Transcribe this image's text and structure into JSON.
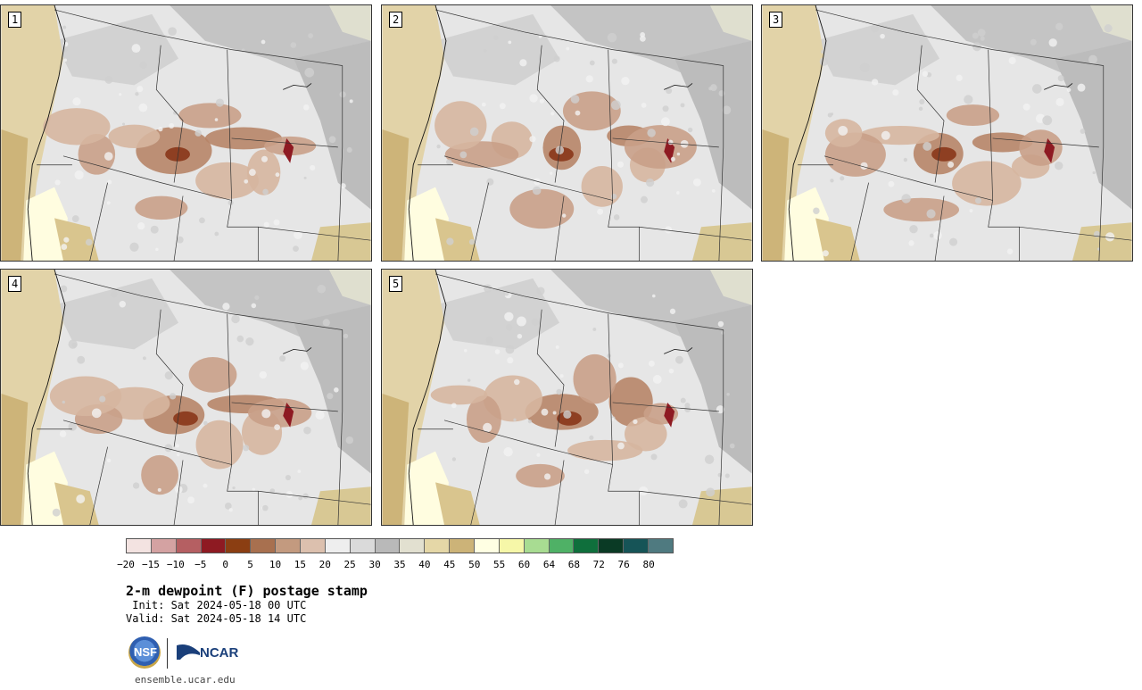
{
  "stamps": [
    {
      "label": "1",
      "variant": 0
    },
    {
      "label": "2",
      "variant": 1
    },
    {
      "label": "3",
      "variant": 2
    },
    {
      "label": "4",
      "variant": 3
    },
    {
      "label": "5",
      "variant": 4
    }
  ],
  "legend": {
    "ticks": [
      "−20",
      "−15",
      "−10",
      "−5",
      "0",
      "5",
      "10",
      "15",
      "20",
      "25",
      "30",
      "35",
      "40",
      "45",
      "50",
      "55",
      "60",
      "64",
      "68",
      "72",
      "76",
      "80"
    ],
    "colors": [
      "#f3e3e1",
      "#d4a2a2",
      "#b55f62",
      "#8e1a22",
      "#8b3e12",
      "#a8704f",
      "#c39a7f",
      "#dcc0ae",
      "#eeeeee",
      "#dadada",
      "#b9b9b9",
      "#e2e0d0",
      "#e5d7a7",
      "#ccb378",
      "#ffffe3",
      "#f6f7a8",
      "#a8dc92",
      "#4fb166",
      "#0f6f3c",
      "#0a3a25",
      "#165457",
      "#4f7a80"
    ]
  },
  "title": "2-m dewpoint (F) postage stamp",
  "init": " Init: Sat 2024-05-18 00 UTC",
  "valid": "Valid: Sat 2024-05-18 14 UTC",
  "logos": {
    "nsf": "NSF",
    "ncar": "NCAR"
  },
  "url": "ensemble.ucar.edu"
}
